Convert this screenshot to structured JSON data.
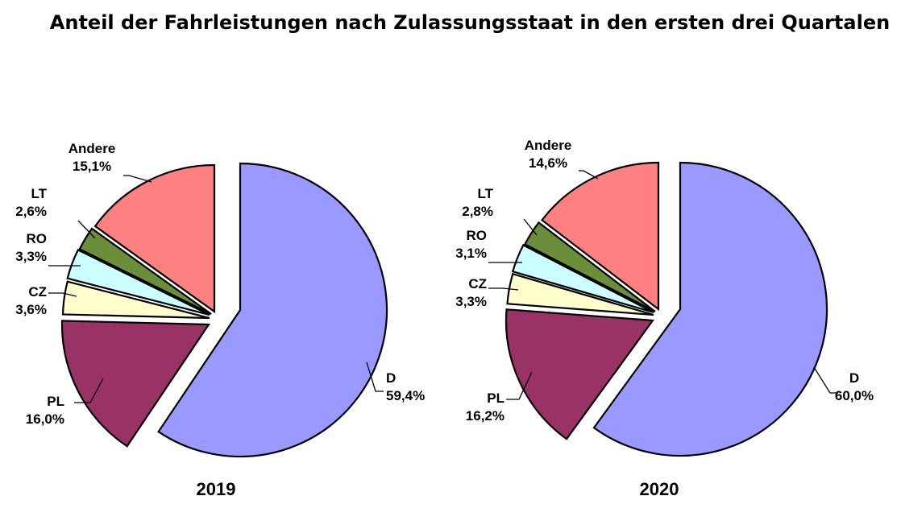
{
  "chart_title": "Anteil der Fahrleistungen nach Zulassungsstaat in den ersten drei Quartalen",
  "chart_data": [
    {
      "type": "pie",
      "caption": "2019",
      "slices": [
        {
          "label": "D",
          "value": 59.4,
          "text": "59,4%",
          "color": "#9999FF"
        },
        {
          "label": "PL",
          "value": 16.0,
          "text": "16,0%",
          "color": "#993366"
        },
        {
          "label": "CZ",
          "value": 3.6,
          "text": "3,6%",
          "color": "#FFFFCC"
        },
        {
          "label": "RO",
          "value": 3.3,
          "text": "3,3%",
          "color": "#CCFFFF"
        },
        {
          "label": "LT",
          "value": 2.6,
          "text": "2,6%",
          "color": "#6B8E3A"
        },
        {
          "label": "Andere",
          "value": 15.1,
          "text": "15,1%",
          "color": "#FF8080"
        }
      ]
    },
    {
      "type": "pie",
      "caption": "2020",
      "slices": [
        {
          "label": "D",
          "value": 60.0,
          "text": "60,0%",
          "color": "#9999FF"
        },
        {
          "label": "PL",
          "value": 16.2,
          "text": "16,2%",
          "color": "#993366"
        },
        {
          "label": "CZ",
          "value": 3.3,
          "text": "3,3%",
          "color": "#FFFFCC"
        },
        {
          "label": "RO",
          "value": 3.1,
          "text": "3,1%",
          "color": "#CCFFFF"
        },
        {
          "label": "LT",
          "value": 2.8,
          "text": "2,8%",
          "color": "#6B8E3A"
        },
        {
          "label": "Andere",
          "value": 14.6,
          "text": "14,6%",
          "color": "#FF8080"
        }
      ]
    }
  ]
}
